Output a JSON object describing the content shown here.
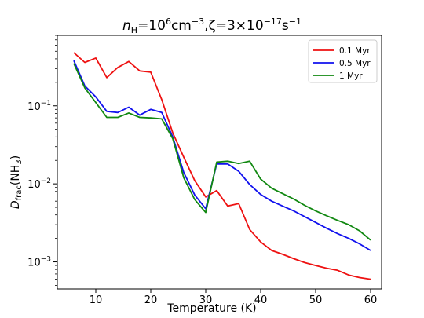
{
  "chart_data": {
    "type": "line",
    "title": {
      "main": "n",
      "main_sub": "H",
      "eq": "=10",
      "eq_sup": "6",
      "unit": "cm",
      "unit_sup": "−3",
      "sep": ",ζ=3×10",
      "zeta_sup": "−17",
      "tail": "s",
      "tail_sup": "−1"
    },
    "xlabel": "Temperature (K)",
    "ylabel": {
      "main": "D",
      "sub": "frac",
      "rest": "(NH",
      "rest_sub": "3",
      "close": ")"
    },
    "xlim": [
      3,
      62
    ],
    "ylim": [
      0.00045,
      0.8
    ],
    "yscale": "log",
    "xticks": [
      10,
      20,
      30,
      40,
      50,
      60
    ],
    "xtick_labels": [
      "10",
      "20",
      "30",
      "40",
      "50",
      "60"
    ],
    "yticks": [
      0.001,
      0.01,
      0.1
    ],
    "ytick_labels": [
      {
        "base": "10",
        "exp": "−3"
      },
      {
        "base": "10",
        "exp": "−2"
      },
      {
        "base": "10",
        "exp": "−1"
      }
    ],
    "legend_position": "top-right",
    "x": [
      6,
      8,
      10,
      12,
      14,
      16,
      18,
      20,
      22,
      24,
      26,
      28,
      30,
      32,
      34,
      36,
      38,
      40,
      42,
      44,
      46,
      48,
      50,
      52,
      54,
      56,
      58,
      60
    ],
    "series": [
      {
        "name": "0.1 Myr",
        "color": "#ee1111",
        "values": [
          0.48,
          0.36,
          0.41,
          0.23,
          0.31,
          0.37,
          0.28,
          0.27,
          0.12,
          0.045,
          0.022,
          0.011,
          0.0068,
          0.0082,
          0.0052,
          0.0056,
          0.0026,
          0.0018,
          0.0014,
          0.00125,
          0.0011,
          0.00098,
          0.0009,
          0.00083,
          0.00078,
          0.00068,
          0.00063,
          0.0006
        ]
      },
      {
        "name": "0.5 Myr",
        "color": "#1111ee",
        "values": [
          0.38,
          0.18,
          0.13,
          0.085,
          0.082,
          0.096,
          0.076,
          0.09,
          0.082,
          0.04,
          0.014,
          0.0072,
          0.0048,
          0.018,
          0.018,
          0.0145,
          0.0098,
          0.0073,
          0.006,
          0.0052,
          0.0045,
          0.0038,
          0.0032,
          0.0027,
          0.0023,
          0.002,
          0.0017,
          0.0014
        ]
      },
      {
        "name": "1 Myr",
        "color": "#118811",
        "values": [
          0.35,
          0.17,
          0.11,
          0.071,
          0.071,
          0.081,
          0.071,
          0.07,
          0.068,
          0.038,
          0.012,
          0.0063,
          0.0043,
          0.019,
          0.0195,
          0.0182,
          0.0195,
          0.0115,
          0.0088,
          0.0075,
          0.0064,
          0.0053,
          0.0045,
          0.0039,
          0.0034,
          0.003,
          0.0025,
          0.0019
        ]
      }
    ]
  }
}
